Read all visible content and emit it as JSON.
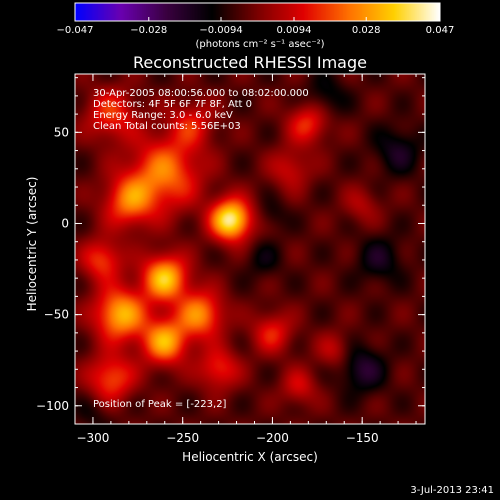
{
  "chart_data": {
    "type": "heatmap",
    "title": "Reconstructed RHESSI Image",
    "xlabel": "Heliocentric X (arcsec)",
    "ylabel": "Heliocentric Y (arcsec)",
    "xlim": [
      -310,
      -115
    ],
    "ylim": [
      -110,
      82
    ],
    "x_ticks": [
      -300,
      -250,
      -200,
      -150
    ],
    "y_ticks": [
      -100,
      -50,
      0,
      50
    ],
    "x_tick_labels": [
      "−300",
      "−250",
      "−200",
      "−150"
    ],
    "y_tick_labels": [
      "−100",
      "−50",
      "0",
      "50"
    ],
    "colorbar": {
      "range": [
        -0.047,
        0.047
      ],
      "tick_values": [
        -0.047,
        -0.028,
        -0.0094,
        0.0094,
        0.028,
        0.047
      ],
      "tick_labels": [
        "−0.047",
        "−0.028",
        "−0.0094",
        "0.0094",
        "0.028",
        "0.047"
      ],
      "units": "(photons cm⁻² s⁻¹ asec⁻²)",
      "colormap": [
        "#0000ff",
        "#6a00b0",
        "#3a0040",
        "#000000",
        "#7a0000",
        "#e00000",
        "#ff7000",
        "#ffd000",
        "#ffffff"
      ]
    },
    "sources": [
      {
        "x": -223,
        "y": 2,
        "amp": 0.047,
        "sigma": 8
      },
      {
        "x": -260,
        "y": 28,
        "amp": 0.028,
        "sigma": 14
      },
      {
        "x": -280,
        "y": 12,
        "amp": 0.026,
        "sigma": 10
      },
      {
        "x": -290,
        "y": 60,
        "amp": 0.02,
        "sigma": 10
      },
      {
        "x": -245,
        "y": 55,
        "amp": 0.016,
        "sigma": 9
      },
      {
        "x": -260,
        "y": -30,
        "amp": 0.038,
        "sigma": 9
      },
      {
        "x": -285,
        "y": -50,
        "amp": 0.036,
        "sigma": 10
      },
      {
        "x": -260,
        "y": -65,
        "amp": 0.034,
        "sigma": 9
      },
      {
        "x": -240,
        "y": -50,
        "amp": 0.03,
        "sigma": 9
      },
      {
        "x": -290,
        "y": -85,
        "amp": 0.024,
        "sigma": 9
      },
      {
        "x": -230,
        "y": -80,
        "amp": 0.02,
        "sigma": 8
      },
      {
        "x": -295,
        "y": -20,
        "amp": 0.022,
        "sigma": 8
      },
      {
        "x": -180,
        "y": 55,
        "amp": 0.02,
        "sigma": 8
      },
      {
        "x": -190,
        "y": 30,
        "amp": 0.014,
        "sigma": 8
      },
      {
        "x": -200,
        "y": -60,
        "amp": 0.018,
        "sigma": 8
      },
      {
        "x": -185,
        "y": -90,
        "amp": 0.014,
        "sigma": 7
      },
      {
        "x": -165,
        "y": -70,
        "amp": 0.012,
        "sigma": 7
      },
      {
        "x": -150,
        "y": 10,
        "amp": 0.01,
        "sigma": 7
      },
      {
        "x": -140,
        "y": -20,
        "amp": -0.012,
        "sigma": 9
      },
      {
        "x": -150,
        "y": -80,
        "amp": -0.016,
        "sigma": 9
      },
      {
        "x": -130,
        "y": 40,
        "amp": -0.013,
        "sigma": 9
      },
      {
        "x": -170,
        "y": 70,
        "amp": -0.01,
        "sigma": 8
      },
      {
        "x": -205,
        "y": -20,
        "amp": -0.008,
        "sigma": 7
      },
      {
        "x": -200,
        "y": 5,
        "amp": -0.007,
        "sigma": 6
      },
      {
        "x": -300,
        "y": -105,
        "amp": -0.006,
        "sigma": 7
      }
    ],
    "background_level": -0.004,
    "annotations": [
      "30-Apr-2005 08:00:56.000 to 08:02:00.000",
      "Detectors: 4F 5F 6F 7F 8F, Att 0",
      "Energy Range: 3.0 - 6.0 keV",
      "Clean     Total counts: 5.56E+03"
    ],
    "peak_label": "Position of Peak = [-223,2]",
    "datestamp": "3-Jul-2013 23:41"
  }
}
